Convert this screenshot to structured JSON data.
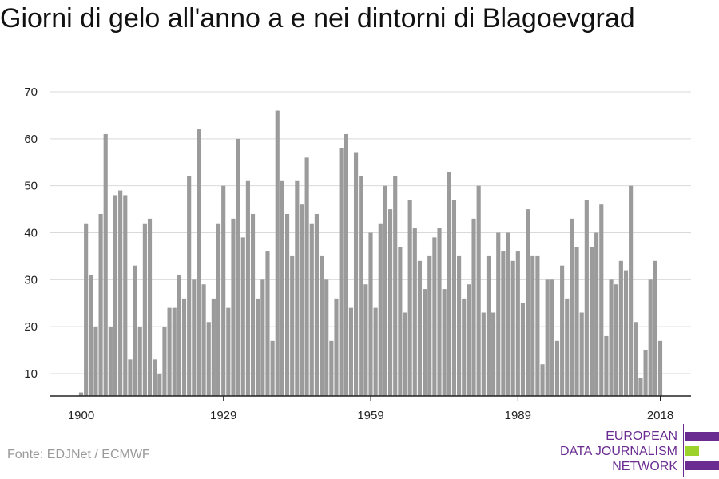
{
  "title": "Giorni di gelo all'anno a e nei dintorni di Blagoevgrad",
  "source": "Fonte: EDJNet / ECMWF",
  "logo": {
    "line1": "EUROPEAN",
    "line2": "DATA JOURNALISM",
    "line3": "NETWORK"
  },
  "colors": {
    "bar": "#9b9b9b",
    "grid": "#d9d9d9",
    "axis": "#222222",
    "logo_purple": "#6a2c91",
    "logo_green": "#9bd22c"
  },
  "chart_data": {
    "type": "bar",
    "title": "Giorni di gelo all'anno a e nei dintorni di Blagoevgrad",
    "xlabel": "",
    "ylabel": "",
    "x_start": 1900,
    "x_end": 2018,
    "xticks": [
      1900,
      1929,
      1959,
      1989,
      2018
    ],
    "yticks": [
      10,
      20,
      30,
      40,
      50,
      60,
      70
    ],
    "ylim": [
      5,
      70
    ],
    "grid": true,
    "values": [
      6,
      42,
      31,
      20,
      44,
      61,
      20,
      48,
      49,
      48,
      13,
      33,
      20,
      42,
      43,
      13,
      10,
      20,
      24,
      24,
      31,
      26,
      52,
      30,
      62,
      29,
      21,
      26,
      42,
      50,
      24,
      43,
      60,
      39,
      51,
      44,
      26,
      30,
      36,
      17,
      66,
      51,
      44,
      35,
      51,
      46,
      56,
      42,
      44,
      35,
      30,
      17,
      26,
      58,
      61,
      24,
      57,
      52,
      29,
      40,
      24,
      42,
      50,
      45,
      52,
      37,
      23,
      47,
      41,
      34,
      28,
      35,
      39,
      41,
      28,
      53,
      47,
      35,
      26,
      29,
      43,
      50,
      23,
      35,
      23,
      40,
      36,
      40,
      34,
      36,
      25,
      45,
      35,
      35,
      12,
      30,
      30,
      17,
      33,
      26,
      43,
      37,
      23,
      47,
      37,
      40,
      46,
      18,
      30,
      29,
      34,
      32,
      50,
      21,
      9,
      15,
      30,
      34,
      17
    ]
  }
}
